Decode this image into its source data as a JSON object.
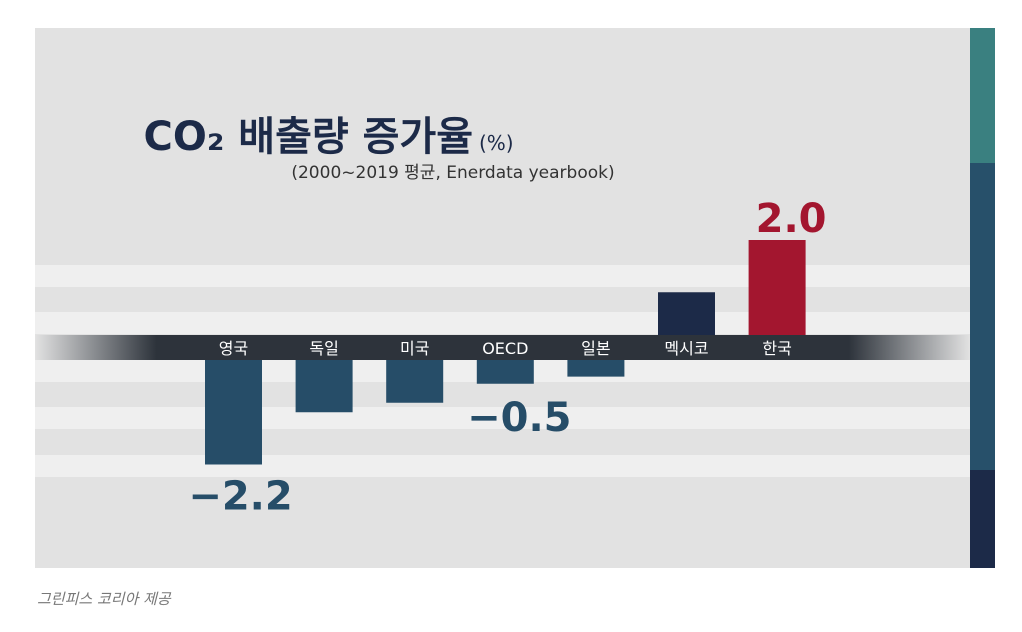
{
  "chart_data": {
    "type": "bar",
    "title": "CO₂ 배출량 증가율",
    "title_unit": "(%)",
    "subtitle": "(2000~2019 평균, Enerdata yearbook)",
    "categories": [
      "영국",
      "독일",
      "미국",
      "OECD",
      "일본",
      "멕시코",
      "한국"
    ],
    "values": [
      -2.2,
      -1.1,
      -0.9,
      -0.5,
      -0.35,
      0.9,
      2.0
    ],
    "data_labels": [
      {
        "index": 0,
        "text": "−2.2"
      },
      {
        "index": 3,
        "text": "−0.5"
      },
      {
        "index": 6,
        "text": "2.0"
      }
    ],
    "bar_colors": [
      "#264d68",
      "#264d68",
      "#264d68",
      "#264d68",
      "#264d68",
      "#1c2a48",
      "#a3162f"
    ],
    "xlabel": "",
    "ylabel": "",
    "ylim": [
      -2.6,
      2.4
    ],
    "grid": true,
    "legend": "none"
  },
  "caption": "그린피스 코리아 제공",
  "colors": {
    "background": "#e2e2e2",
    "band": "#efefef",
    "axis": "#2d333b",
    "title": "#1c2a48",
    "side_top": "#3a8080",
    "side_mid": "#27506a",
    "side_bottom": "#1c2a48"
  }
}
